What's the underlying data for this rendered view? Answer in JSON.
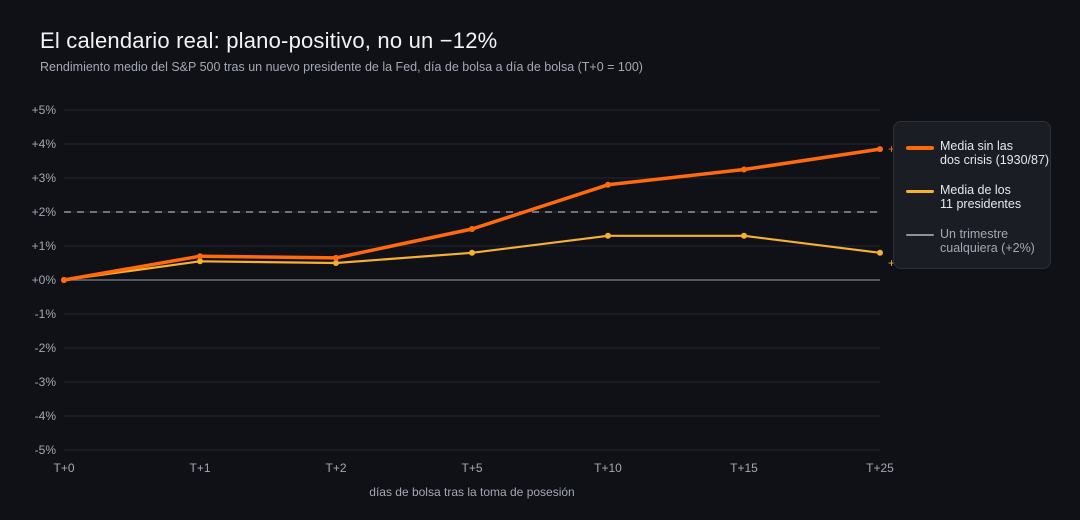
{
  "title": "El calendario real: plano-positivo, no un −12%",
  "subtitle": "Rendimiento medio del S&P 500 tras un nuevo presidente de la Fed, día de bolsa a día de bolsa (T+0 = 100)",
  "chart_data": {
    "type": "line",
    "categories": [
      "T+0",
      "T+1",
      "T+2",
      "T+5",
      "T+10",
      "T+15",
      "T+25"
    ],
    "xlabel": "días de bolsa tras la toma de posesión",
    "ylabel": "",
    "ylim": [
      -5,
      5
    ],
    "yticks": [
      5,
      4,
      3,
      2,
      1,
      0,
      -1,
      -2,
      -3,
      -4,
      -5
    ],
    "ytick_labels": [
      "+5%",
      "+4%",
      "+3%",
      "+2%",
      "+1%",
      "+0%",
      "-1%",
      "-2%",
      "-3%",
      "-4%",
      "-5%"
    ],
    "grid": true,
    "legend_position": "right",
    "series": [
      {
        "name_lines": [
          "Media sin las",
          "dos crisis (1930/87)"
        ],
        "color": "#ff6a0f",
        "values": [
          0.0,
          0.7,
          0.65,
          1.5,
          2.8,
          3.25,
          3.85
        ],
        "end_label": "+"
      },
      {
        "name_lines": [
          "Media de los",
          "11 presidentes"
        ],
        "color": "#f7b032",
        "values": [
          0.0,
          0.55,
          0.5,
          0.8,
          1.3,
          1.3,
          0.8
        ],
        "end_label": "+"
      }
    ],
    "reference_line": {
      "name_lines": [
        "Un trimestre",
        "cualquiera (+2%)"
      ],
      "value": 2,
      "color": "#8e939c",
      "style": "dashed"
    },
    "zero_line_color": "#6b707a"
  }
}
